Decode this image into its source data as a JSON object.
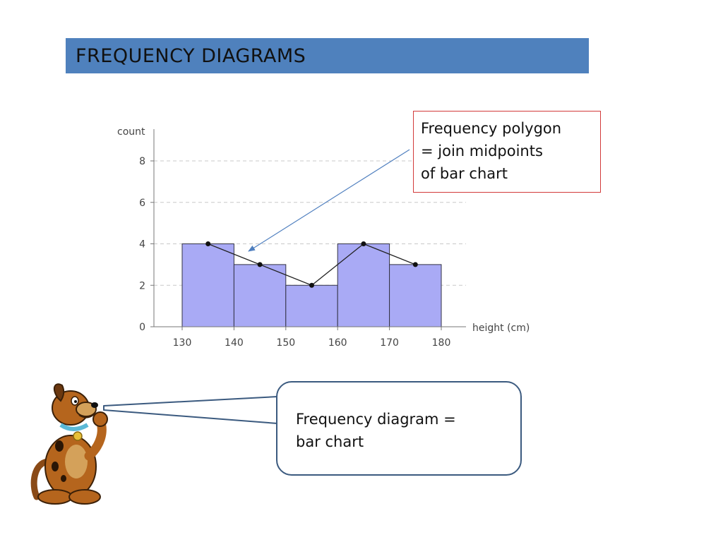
{
  "slide": {
    "title": "FREQUENCY DIAGRAMS",
    "callout_polygon": [
      "Frequency polygon",
      "= join midpoints",
      "of bar chart"
    ],
    "speech_bubble": [
      "Frequency diagram =",
      "bar chart"
    ],
    "colors": {
      "title_bar": "#4f81bd",
      "bar_fill": "#a9aaf5",
      "bar_stroke": "#333344",
      "polygon_line": "#222222",
      "callout_border": "#d23a3a",
      "arrow": "#4f7fbf",
      "bubble_border": "#3b5a7f"
    },
    "mascot_icon": "cartoon-dog-icon"
  },
  "chart_data": {
    "type": "bar",
    "bins": [
      [
        130,
        140
      ],
      [
        140,
        150
      ],
      [
        150,
        160
      ],
      [
        160,
        170
      ],
      [
        170,
        180
      ]
    ],
    "values": [
      4,
      3,
      2,
      4,
      3
    ],
    "x_ticks": [
      "130",
      "140",
      "150",
      "160",
      "170",
      "180"
    ],
    "y_ticks": [
      "0",
      "2",
      "4",
      "6",
      "8"
    ],
    "xlim": [
      130,
      180
    ],
    "ylim": [
      0,
      8
    ],
    "xlabel": "height (cm)",
    "ylabel": "count",
    "grid": "dashed horizontal",
    "overlay": {
      "type": "line",
      "x": [
        135,
        145,
        155,
        165,
        175
      ],
      "y": [
        4,
        3,
        2,
        4,
        3
      ]
    }
  }
}
